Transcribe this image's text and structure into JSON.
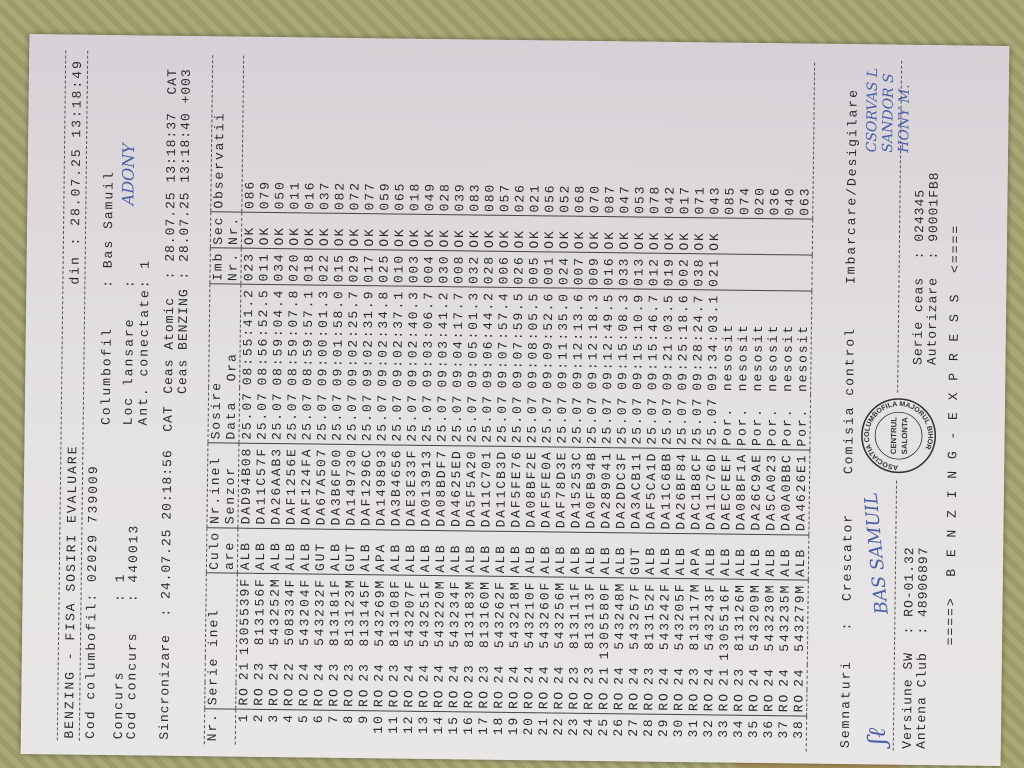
{
  "header": {
    "title": "BENZING - FISA SOSIRI EVALUARE",
    "din": "din : 28.07.25 13:18:49",
    "cod_columbofil": "Cod columbofil: 02029 739009",
    "columbofil": "Columbofil    : Bas Samuil",
    "concurs": "Concurs       : 1",
    "cod_concurs": "Cod concurs   : 440013",
    "loc_lansare": "Loc lansare   :",
    "loc_lansare_handwritten": "ADONY",
    "ant_conectate": "Ant. conectate: 1",
    "sincronizare": "Sincronizare  : 24.07.25 20:18:56  CAT",
    "ceas_atomic": "Ceas Atomic  : 28.07.25 13:18:37  CAT",
    "ceas_benzing": "Ceas BENZING : 28.07.25 13:18:40 +003"
  },
  "table": {
    "headers": {
      "nr": "Nr.",
      "serie": "Serie inel",
      "culoare": "Culo\nare",
      "senzor": "Nr.inel\nSenzor",
      "sosire": "Sosire\nData  Ora",
      "imb": "Imb\nNr.",
      "sec": "Sec\nNr.",
      "obs": "Observatii"
    },
    "rows": [
      [
        "1",
        "RO",
        "21",
        "1305539F",
        "ALB",
        "DAD94B08",
        "25.07",
        "08:55:41.2",
        "023",
        "OK",
        "086"
      ],
      [
        "2",
        "RO",
        "23",
        "813156F",
        "ALB",
        "DA11C57F",
        "25.07",
        "08:56:52.5",
        "011",
        "OK",
        "079"
      ],
      [
        "3",
        "RO",
        "24",
        "543252M",
        "ALB",
        "DA26AAB3",
        "25.07",
        "08:59:04.4",
        "034",
        "OK",
        "050"
      ],
      [
        "4",
        "RO",
        "22",
        "508334F",
        "ALB",
        "DAF1256E",
        "25.07",
        "08:59:07.8",
        "020",
        "OK",
        "011"
      ],
      [
        "5",
        "RO",
        "24",
        "543204F",
        "ALB",
        "DAF124FA",
        "25.07",
        "08:59:57.1",
        "018",
        "OK",
        "016"
      ],
      [
        "6",
        "RO",
        "24",
        "543232F",
        "GUT",
        "DA67A507",
        "25.07",
        "09:00:01.3",
        "022",
        "OK",
        "037"
      ],
      [
        "7",
        "RO",
        "23",
        "813181F",
        "ALB",
        "DA3B6F00",
        "25.07",
        "09:01:58.0",
        "015",
        "OK",
        "082"
      ],
      [
        "8",
        "RO",
        "23",
        "813123M",
        "GUT",
        "DA149730",
        "25.07",
        "09:02:25.7",
        "029",
        "OK",
        "072"
      ],
      [
        "9",
        "RO",
        "23",
        "813145F",
        "ALB",
        "DAF1296C",
        "25.07",
        "09:02:31.9",
        "017",
        "OK",
        "077"
      ],
      [
        "10",
        "RO",
        "24",
        "543269M",
        "APA",
        "DA149893",
        "25.07",
        "09:02:34.8",
        "025",
        "OK",
        "059"
      ],
      [
        "11",
        "RO",
        "23",
        "813108F",
        "ALB",
        "DA3B4656",
        "25.07",
        "09:02:37.1",
        "010",
        "OK",
        "065"
      ],
      [
        "12",
        "RO",
        "24",
        "543207F",
        "ALB",
        "DAE3E33F",
        "25.07",
        "09:02:40.3",
        "003",
        "OK",
        "018"
      ],
      [
        "13",
        "RO",
        "24",
        "543251F",
        "ALB",
        "DA013913",
        "25.07",
        "09:03:06.7",
        "004",
        "OK",
        "049"
      ],
      [
        "14",
        "RO",
        "24",
        "543220M",
        "ALB",
        "DA08BDF7",
        "25.07",
        "09:03:41.2",
        "030",
        "OK",
        "028"
      ],
      [
        "15",
        "RO",
        "24",
        "543234F",
        "ALB",
        "DA4625ED",
        "25.07",
        "09:04:17.7",
        "008",
        "OK",
        "039"
      ],
      [
        "16",
        "RO",
        "23",
        "813183M",
        "ALB",
        "DA5F5A20",
        "25.07",
        "09:05:01.3",
        "032",
        "OK",
        "083"
      ],
      [
        "17",
        "RO",
        "23",
        "813160M",
        "ALB",
        "DA11C701",
        "25.07",
        "09:06:44.2",
        "028",
        "OK",
        "080"
      ],
      [
        "18",
        "RO",
        "24",
        "543262F",
        "ALB",
        "DA11CB3D",
        "25.07",
        "09:07:57.4",
        "006",
        "OK",
        "057"
      ],
      [
        "19",
        "RO",
        "24",
        "543218M",
        "ALB",
        "DAF5FE76",
        "25.07",
        "09:07:59.5",
        "026",
        "OK",
        "026"
      ],
      [
        "20",
        "RO",
        "24",
        "543210F",
        "ALB",
        "DA08BF2E",
        "25.07",
        "09:08:05.5",
        "005",
        "OK",
        "021"
      ],
      [
        "21",
        "RO",
        "24",
        "543260F",
        "ALB",
        "DAF5FE0A",
        "25.07",
        "09:09:52.6",
        "001",
        "OK",
        "056"
      ],
      [
        "22",
        "RO",
        "24",
        "543256M",
        "ALB",
        "DAF78D3E",
        "25.07",
        "09:11:35.0",
        "024",
        "OK",
        "052"
      ],
      [
        "23",
        "RO",
        "23",
        "813111F",
        "ALB",
        "DA15253C",
        "25.07",
        "09:12:13.6",
        "007",
        "OK",
        "068"
      ],
      [
        "24",
        "RO",
        "23",
        "813113F",
        "ALB",
        "DA0FB94B",
        "25.07",
        "09:12:18.3",
        "009",
        "OK",
        "070"
      ],
      [
        "25",
        "RO",
        "21",
        "1305580F",
        "ALB",
        "DA289041",
        "25.07",
        "09:12:49.5",
        "016",
        "OK",
        "087"
      ],
      [
        "26",
        "RO",
        "24",
        "543248M",
        "ALB",
        "DA2DDC3F",
        "25.07",
        "09:15:08.3",
        "033",
        "OK",
        "047"
      ],
      [
        "27",
        "RO",
        "24",
        "543257F",
        "GUT",
        "DA3ACB11",
        "25.07",
        "09:15:10.9",
        "013",
        "OK",
        "053"
      ],
      [
        "28",
        "RO",
        "23",
        "813152F",
        "ALB",
        "DAF5CA1D",
        "25.07",
        "09:15:46.7",
        "012",
        "OK",
        "078"
      ],
      [
        "29",
        "RO",
        "24",
        "543242F",
        "ALB",
        "DA11C6BB",
        "25.07",
        "09:21:03.5",
        "019",
        "OK",
        "042"
      ],
      [
        "30",
        "RO",
        "24",
        "543205F",
        "ALB",
        "DA26BF84",
        "25.07",
        "09:25:18.6",
        "002",
        "OK",
        "017"
      ],
      [
        "31",
        "RO",
        "23",
        "813117M",
        "APA",
        "DAC1B8CF",
        "25.07",
        "09:28:24.7",
        "038",
        "OK",
        "071"
      ],
      [
        "32",
        "RO",
        "24",
        "543243F",
        "ALB",
        "DA11C76D",
        "25.07",
        "09:34:03.1",
        "021",
        "OK",
        "043"
      ],
      [
        "33",
        "RO",
        "21",
        "1305516F",
        "ALB",
        "DAECFEEF",
        "Por.",
        "nesosit",
        "",
        "",
        "085"
      ],
      [
        "34",
        "RO",
        "23",
        "813126M",
        "ALB",
        "DA08BF1A",
        "Por.",
        "nesosit",
        "",
        "",
        "074"
      ],
      [
        "35",
        "RO",
        "24",
        "543209M",
        "ALB",
        "DA26C9AE",
        "Por.",
        "nesosit",
        "",
        "",
        "020"
      ],
      [
        "36",
        "RO",
        "24",
        "543230M",
        "ALB",
        "DA5CA023",
        "Por.",
        "nesosit",
        "",
        "",
        "036"
      ],
      [
        "37",
        "RO",
        "24",
        "543235M",
        "ALB",
        "DA0A0BBC",
        "Por.",
        "nesosit",
        "",
        "",
        "040"
      ],
      [
        "38",
        "RO",
        "24",
        "543279M",
        "ALB",
        "DA4626E1",
        "Por.",
        "nesosit",
        "",
        "",
        "063"
      ]
    ]
  },
  "footer": {
    "semnaturi": "Semnaturi   :  Crescator",
    "comisia": "Comisia control",
    "imbarcare": "Imbarcare/Desigilare",
    "versiune": "Versiune SW  : RO-01.32",
    "antena": "Antena Club  : 48906897",
    "serie_ceas": "Serie ceas  : 024345",
    "autorizare": "Autorizare  : 90001FB8",
    "banner": "====>  B E N Z I N G - E X P R E S S  <====",
    "sign_crescator": "BAS SAMUIL",
    "sign_imbarcare": "CSORVAS L\nSANDOR S\nHONY M.",
    "stamp_ring": "ASOCIATIA COLUMBOFILA MAJORUL BIHOR",
    "stamp_center": "CENTRUL\nSALONTA"
  },
  "colors": {
    "ink": "#2b2b2e",
    "pen": "#4a5fa8",
    "paper": "#e6e3e4"
  }
}
